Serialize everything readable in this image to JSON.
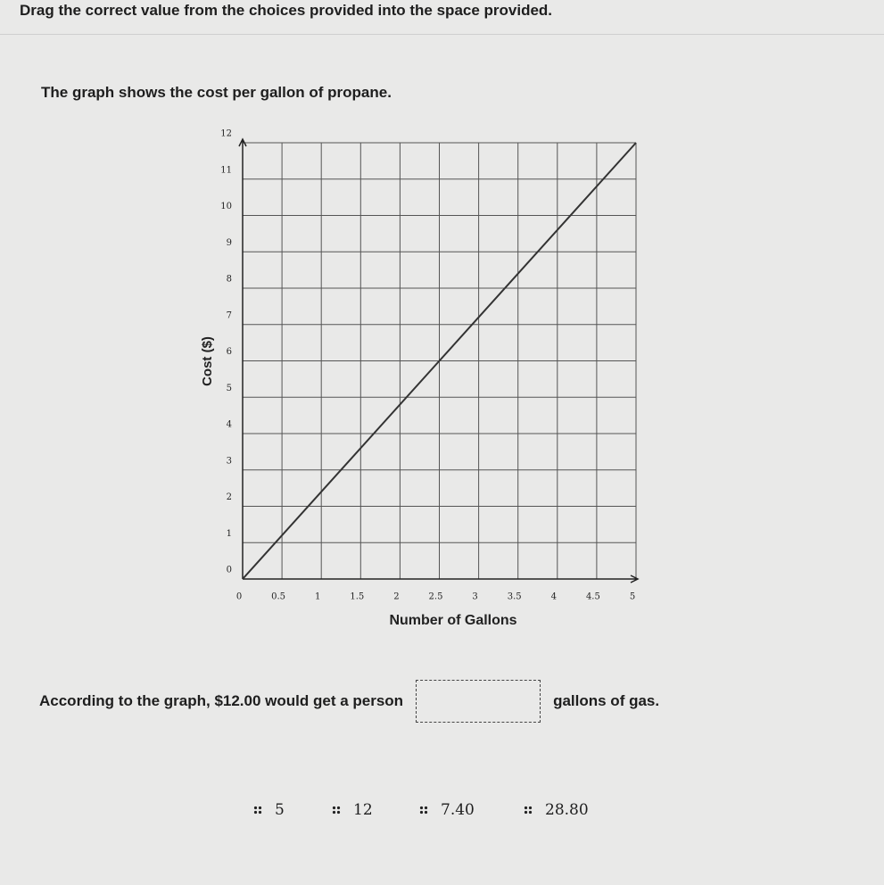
{
  "instruction": "Drag the correct value from the choices provided into the space provided.",
  "prompt": "The graph shows the cost per gallon of propane.",
  "chart_data": {
    "type": "line",
    "x_label": "Number of Gallons",
    "y_label": "Cost ($)",
    "x": [
      0,
      2.5,
      5
    ],
    "values": [
      0,
      6,
      12
    ],
    "color": "#333333",
    "xlim": [
      0,
      5
    ],
    "ylim": [
      0,
      12
    ],
    "xticks": [
      0,
      0.5,
      1,
      1.5,
      2,
      2.5,
      3,
      3.5,
      4,
      4.5,
      5
    ],
    "yticks": [
      0,
      1,
      2,
      3,
      4,
      5,
      6,
      7,
      8,
      9,
      10,
      11,
      12
    ],
    "grid": true
  },
  "question": {
    "before": "According to the graph, $12.00 would get a person",
    "after": "gallons of gas."
  },
  "choices": [
    "5",
    "12",
    "7.40",
    "28.80"
  ]
}
